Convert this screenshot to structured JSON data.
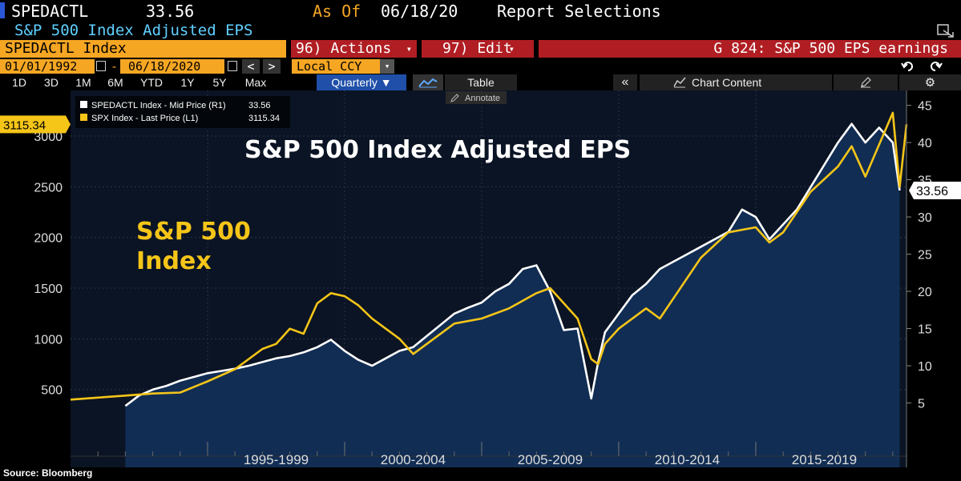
{
  "header": {
    "ticker": "SPEDACTL",
    "value": "33.56",
    "as_of_label": "As Of",
    "as_of_date": "06/18/20",
    "report_selections": "Report Selections",
    "subtitle": "S&P 500 Index Adjusted EPS"
  },
  "toolbar": {
    "security": "SPEDACTL Index",
    "actions": "96) Actions",
    "edit": "97) Edit",
    "graph_id": "G 824: S&P 500 EPS earnings",
    "start_date": "01/01/1992",
    "end_date": "06/18/2020",
    "currency": "Local CCY"
  },
  "ranges": [
    "1D",
    "3D",
    "1M",
    "6M",
    "YTD",
    "1Y",
    "5Y",
    "Max"
  ],
  "period": "Quarterly",
  "table_label": "Table",
  "chart_content_label": "Chart Content",
  "annotate_label": "Annotate",
  "source": "Source: Bloomberg",
  "colors": {
    "eps": "#ffffff",
    "spx": "#f5c518",
    "area": "#12305a",
    "plot_bg": "#0b1424",
    "accent_orange": "#f5a623",
    "red_bar": "#b01e23",
    "blue_btn": "#1f4fa8"
  },
  "chart_data": {
    "type": "line",
    "title": "S&P 500 Index Adjusted EPS",
    "annotation": "S&P 500 Index",
    "xtick_labels": [
      "1995-1999",
      "2000-2004",
      "2005-2009",
      "2010-2014",
      "2015-2019"
    ],
    "xlim": [
      1990.0,
      2020.5
    ],
    "legend": [
      {
        "label": "SPEDACTL Index - Mid Price (R1)",
        "value": "33.56"
      },
      {
        "label": "SPX Index - Last Price (L1)",
        "value": "3115.34"
      }
    ],
    "left_axis": {
      "ylim": [
        0,
        3450
      ],
      "ticks": [
        500,
        1000,
        1500,
        2000,
        2500,
        3000
      ]
    },
    "right_axis": {
      "ylim": [
        0,
        47
      ],
      "ticks": [
        5,
        10,
        15,
        20,
        25,
        30,
        35,
        40,
        45
      ]
    },
    "last_values": {
      "spx": "3115.34",
      "eps": "33.56"
    },
    "series": [
      {
        "name": "SPEDACTL Index - Mid Price (R1)",
        "axis": "right",
        "x": [
          1992.0,
          1992.5,
          1993.0,
          1993.5,
          1994.0,
          1994.5,
          1995.0,
          1995.5,
          1996.0,
          1996.5,
          1997.0,
          1997.5,
          1998.0,
          1998.5,
          1999.0,
          1999.5,
          2000.0,
          2000.5,
          2001.0,
          2001.5,
          2002.0,
          2002.5,
          2003.0,
          2003.5,
          2004.0,
          2004.5,
          2005.0,
          2005.5,
          2006.0,
          2006.5,
          2007.0,
          2007.5,
          2008.0,
          2008.5,
          2009.0,
          2009.25,
          2009.5,
          2010.0,
          2010.5,
          2011.0,
          2011.5,
          2012.0,
          2012.5,
          2013.0,
          2013.5,
          2014.0,
          2014.5,
          2015.0,
          2015.5,
          2016.0,
          2016.5,
          2017.0,
          2017.5,
          2018.0,
          2018.5,
          2019.0,
          2019.5,
          2020.0,
          2020.25
        ],
        "values": [
          4.6,
          6.0,
          6.8,
          7.3,
          8.0,
          8.5,
          9.0,
          9.3,
          9.6,
          10.0,
          10.5,
          11.0,
          11.3,
          11.8,
          12.5,
          13.5,
          12.0,
          10.8,
          10.0,
          11.0,
          12.0,
          12.5,
          14.0,
          15.5,
          17.0,
          17.8,
          18.5,
          20.0,
          21.0,
          23.0,
          23.5,
          20.0,
          14.8,
          15.0,
          5.6,
          10.5,
          14.5,
          17.0,
          19.5,
          21.0,
          23.0,
          24.0,
          25.0,
          26.0,
          27.0,
          28.0,
          31.0,
          30.0,
          27.0,
          29.0,
          31.0,
          34.0,
          37.0,
          40.0,
          42.5,
          40.0,
          42.0,
          40.0,
          33.56
        ]
      },
      {
        "name": "SPX Index - Last Price (L1)",
        "axis": "left",
        "x": [
          1990.0,
          1991.0,
          1992.0,
          1993.0,
          1994.0,
          1995.0,
          1996.0,
          1997.0,
          1997.5,
          1998.0,
          1998.5,
          1999.0,
          1999.5,
          2000.0,
          2000.5,
          2001.0,
          2001.5,
          2002.0,
          2002.5,
          2003.0,
          2004.0,
          2005.0,
          2006.0,
          2007.0,
          2007.5,
          2008.0,
          2008.5,
          2009.0,
          2009.25,
          2009.5,
          2010.0,
          2011.0,
          2011.5,
          2012.0,
          2013.0,
          2014.0,
          2015.0,
          2015.5,
          2016.0,
          2017.0,
          2018.0,
          2018.5,
          2019.0,
          2020.0,
          2020.25,
          2020.5
        ],
        "values": [
          400,
          420,
          440,
          460,
          470,
          580,
          700,
          900,
          950,
          1100,
          1050,
          1350,
          1450,
          1420,
          1330,
          1200,
          1100,
          1000,
          850,
          950,
          1150,
          1200,
          1300,
          1450,
          1500,
          1350,
          1200,
          800,
          750,
          950,
          1100,
          1300,
          1200,
          1400,
          1800,
          2050,
          2100,
          1950,
          2050,
          2450,
          2700,
          2900,
          2600,
          3230,
          2500,
          3115.34
        ]
      }
    ]
  }
}
